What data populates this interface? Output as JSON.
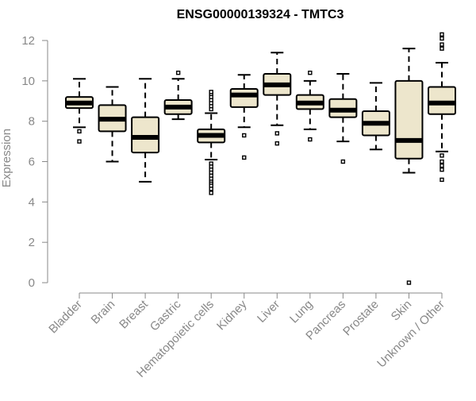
{
  "chart_data": {
    "type": "boxplot",
    "title": "ENSG00000139324 - TMTC3",
    "xlabel": "",
    "ylabel": "Expression",
    "ylim": [
      0,
      12
    ],
    "yticks": [
      0,
      2,
      4,
      6,
      8,
      10,
      12
    ],
    "ytick_labels": [
      "0",
      "2",
      "4",
      "6",
      "8",
      "10",
      "12"
    ],
    "colors": {
      "box_fill": "#ede6cc",
      "stroke": "#000000",
      "axis_text": "#888888",
      "title": "#000000"
    },
    "categories": [
      "Bladder",
      "Brain",
      "Breast",
      "Gastric",
      "Hematopoietic cells",
      "Kidney",
      "Liver",
      "Lung",
      "Pancreas",
      "Prostate",
      "Skin",
      "Unknown / Other"
    ],
    "series": [
      {
        "name": "Bladder",
        "whisker_low": 7.7,
        "q1": 8.65,
        "median": 8.9,
        "q3": 9.2,
        "whisker_high": 10.1,
        "outliers": [
          7.5,
          7.0
        ]
      },
      {
        "name": "Brain",
        "whisker_low": 6.0,
        "q1": 7.5,
        "median": 8.1,
        "q3": 8.8,
        "whisker_high": 9.7,
        "outliers": []
      },
      {
        "name": "Breast",
        "whisker_low": 5.0,
        "q1": 6.45,
        "median": 7.2,
        "q3": 8.2,
        "whisker_high": 10.1,
        "outliers": []
      },
      {
        "name": "Gastric",
        "whisker_low": 8.1,
        "q1": 8.35,
        "median": 8.7,
        "q3": 9.05,
        "whisker_high": 10.1,
        "outliers": [
          10.4
        ]
      },
      {
        "name": "Hematopoietic cells",
        "whisker_low": 6.1,
        "q1": 6.95,
        "median": 7.3,
        "q3": 7.6,
        "whisker_high": 8.4,
        "outliers": [
          8.6,
          8.75,
          8.9,
          9.05,
          9.2,
          9.35,
          9.45,
          5.9,
          5.75,
          5.6,
          5.45,
          5.3,
          5.15,
          5.0,
          4.9,
          4.8,
          4.65,
          4.45
        ]
      },
      {
        "name": "Kidney",
        "whisker_low": 7.7,
        "q1": 8.7,
        "median": 9.3,
        "q3": 9.6,
        "whisker_high": 10.3,
        "outliers": [
          7.3,
          6.2
        ]
      },
      {
        "name": "Liver",
        "whisker_low": 7.8,
        "q1": 9.3,
        "median": 9.8,
        "q3": 10.35,
        "whisker_high": 11.4,
        "outliers": [
          7.4,
          6.9
        ]
      },
      {
        "name": "Lung",
        "whisker_low": 7.6,
        "q1": 8.6,
        "median": 8.9,
        "q3": 9.3,
        "whisker_high": 10.0,
        "outliers": [
          10.4,
          7.1
        ]
      },
      {
        "name": "Pancreas",
        "whisker_low": 7.0,
        "q1": 8.2,
        "median": 8.55,
        "q3": 9.1,
        "whisker_high": 10.35,
        "outliers": [
          6.0
        ]
      },
      {
        "name": "Prostate",
        "whisker_low": 6.6,
        "q1": 7.3,
        "median": 7.9,
        "q3": 8.5,
        "whisker_high": 9.9,
        "outliers": []
      },
      {
        "name": "Skin",
        "whisker_low": 5.45,
        "q1": 6.15,
        "median": 7.05,
        "q3": 10.0,
        "whisker_high": 11.6,
        "outliers": [
          0.0
        ]
      },
      {
        "name": "Unknown / Other",
        "whisker_low": 6.5,
        "q1": 8.35,
        "median": 8.9,
        "q3": 9.7,
        "whisker_high": 10.9,
        "outliers": [
          12.3,
          12.1,
          11.8,
          11.6,
          6.3,
          6.0,
          5.8,
          5.6,
          5.1
        ]
      }
    ]
  }
}
